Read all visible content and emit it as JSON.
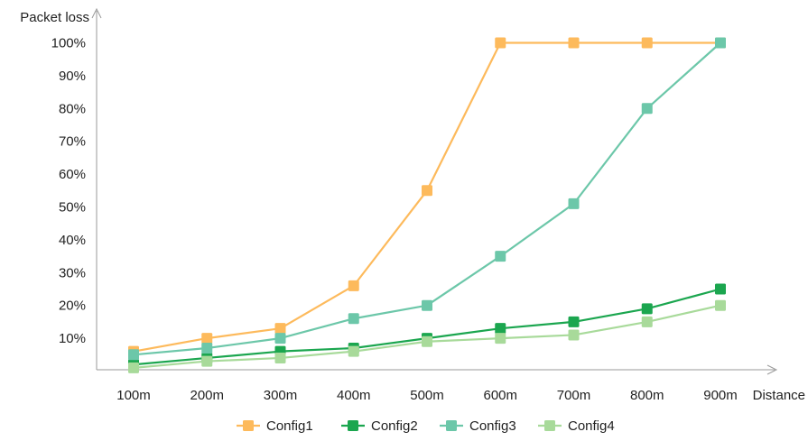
{
  "chart_data": {
    "type": "line",
    "ylabel": "Packet loss",
    "xlabel": "Distance",
    "categories": [
      "100m",
      "200m",
      "300m",
      "400m",
      "500m",
      "600m",
      "700m",
      "800m",
      "900m"
    ],
    "y_ticks": [
      "10%",
      "20%",
      "30%",
      "40%",
      "50%",
      "60%",
      "70%",
      "80%",
      "90%",
      "100%"
    ],
    "ylim": [
      0,
      100
    ],
    "grid": false,
    "legend": "bottom",
    "series": [
      {
        "name": "Config1",
        "color": "#FDBA5C",
        "values": [
          6,
          10,
          13,
          26,
          55,
          100,
          100,
          100,
          100
        ]
      },
      {
        "name": "Config2",
        "color": "#1BA64F",
        "values": [
          2,
          4,
          6,
          7,
          10,
          13,
          15,
          19,
          25
        ]
      },
      {
        "name": "Config3",
        "color": "#6CC7A9",
        "values": [
          5,
          7,
          10,
          16,
          20,
          35,
          51,
          80,
          100
        ]
      },
      {
        "name": "Config4",
        "color": "#A8DA9A",
        "values": [
          1,
          3,
          4,
          6,
          9,
          10,
          11,
          15,
          20
        ]
      }
    ]
  }
}
